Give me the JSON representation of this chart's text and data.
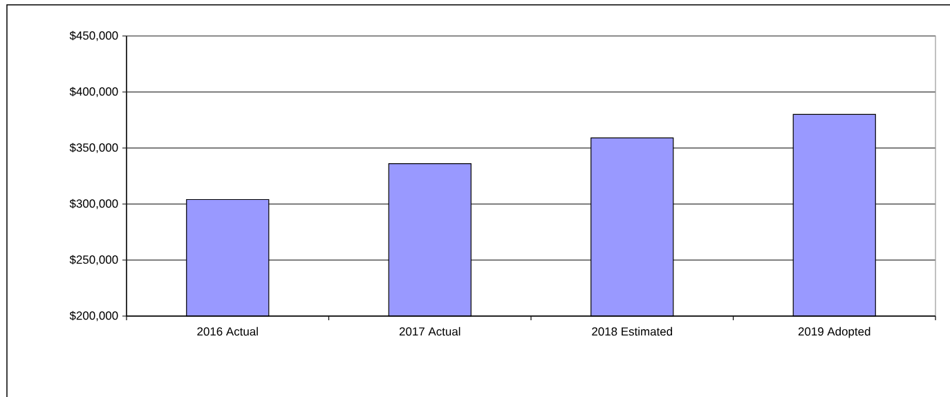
{
  "chart_data": {
    "type": "bar",
    "categories": [
      "2016 Actual",
      "2017 Actual",
      "2018 Estimated",
      "2019 Adopted"
    ],
    "values": [
      304000,
      336000,
      359000,
      380000
    ],
    "color": "#9999ff",
    "ylim": [
      200000,
      450000
    ],
    "yticks": [
      {
        "value": 200000,
        "label": "$200,000"
      },
      {
        "value": 250000,
        "label": "$250,000"
      },
      {
        "value": 300000,
        "label": "$300,000"
      },
      {
        "value": 350000,
        "label": "$350,000"
      },
      {
        "value": 400000,
        "label": "$400,000"
      },
      {
        "value": 450000,
        "label": "$450,000"
      }
    ],
    "grid": "y"
  }
}
